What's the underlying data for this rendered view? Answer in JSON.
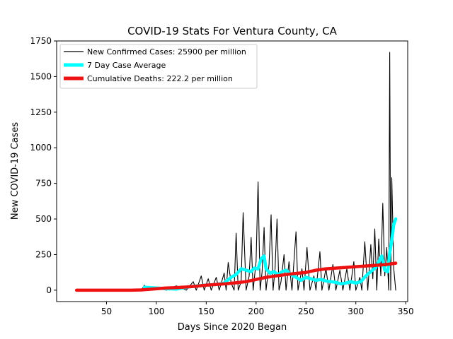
{
  "chart_data": {
    "type": "line",
    "title": "COVID-19 Stats For Ventura County, CA",
    "xlabel": "Days Since 2020 Began",
    "ylabel": "New COVID-19 Cases",
    "xlim": [
      0,
      352
    ],
    "ylim": [
      -80,
      1750
    ],
    "xticks": [
      50,
      100,
      150,
      200,
      250,
      300,
      350
    ],
    "yticks": [
      0,
      250,
      500,
      750,
      1000,
      1250,
      1500,
      1750
    ],
    "grid": false,
    "legend_position": "top-left",
    "series": [
      {
        "name": "New Confirmed Cases: 25900 per million",
        "color": "#000000",
        "points": [
          [
            85,
            0
          ],
          [
            88,
            35
          ],
          [
            90,
            0
          ],
          [
            100,
            20
          ],
          [
            110,
            0
          ],
          [
            120,
            30
          ],
          [
            130,
            0
          ],
          [
            137,
            60
          ],
          [
            140,
            0
          ],
          [
            145,
            100
          ],
          [
            148,
            0
          ],
          [
            152,
            80
          ],
          [
            155,
            0
          ],
          [
            160,
            90
          ],
          [
            163,
            0
          ],
          [
            168,
            120
          ],
          [
            170,
            0
          ],
          [
            172,
            195
          ],
          [
            175,
            50
          ],
          [
            178,
            0
          ],
          [
            180,
            400
          ],
          [
            182,
            0
          ],
          [
            185,
            60
          ],
          [
            187,
            545
          ],
          [
            190,
            0
          ],
          [
            193,
            100
          ],
          [
            195,
            370
          ],
          [
            197,
            0
          ],
          [
            200,
            200
          ],
          [
            202,
            760
          ],
          [
            204,
            0
          ],
          [
            206,
            130
          ],
          [
            208,
            440
          ],
          [
            210,
            0
          ],
          [
            213,
            180
          ],
          [
            215,
            530
          ],
          [
            217,
            0
          ],
          [
            219,
            150
          ],
          [
            221,
            500
          ],
          [
            223,
            0
          ],
          [
            225,
            60
          ],
          [
            228,
            250
          ],
          [
            230,
            0
          ],
          [
            233,
            200
          ],
          [
            236,
            0
          ],
          [
            240,
            410
          ],
          [
            242,
            0
          ],
          [
            246,
            150
          ],
          [
            248,
            0
          ],
          [
            251,
            300
          ],
          [
            254,
            0
          ],
          [
            258,
            100
          ],
          [
            260,
            0
          ],
          [
            264,
            270
          ],
          [
            266,
            0
          ],
          [
            270,
            150
          ],
          [
            273,
            0
          ],
          [
            277,
            180
          ],
          [
            280,
            0
          ],
          [
            284,
            140
          ],
          [
            287,
            0
          ],
          [
            291,
            150
          ],
          [
            294,
            0
          ],
          [
            298,
            200
          ],
          [
            300,
            0
          ],
          [
            304,
            90
          ],
          [
            306,
            0
          ],
          [
            309,
            340
          ],
          [
            312,
            0
          ],
          [
            315,
            320
          ],
          [
            317,
            80
          ],
          [
            319,
            430
          ],
          [
            321,
            0
          ],
          [
            323,
            360
          ],
          [
            325,
            100
          ],
          [
            327,
            610
          ],
          [
            329,
            100
          ],
          [
            331,
            300
          ],
          [
            333,
            0
          ],
          [
            334,
            1670
          ],
          [
            335,
            0
          ],
          [
            336,
            790
          ],
          [
            338,
            150
          ],
          [
            340,
            0
          ]
        ]
      },
      {
        "name": "7 Day Case Average",
        "color": "#00ffff",
        "points": [
          [
            88,
            20
          ],
          [
            100,
            15
          ],
          [
            110,
            10
          ],
          [
            120,
            8
          ],
          [
            130,
            20
          ],
          [
            140,
            30
          ],
          [
            150,
            35
          ],
          [
            160,
            40
          ],
          [
            168,
            50
          ],
          [
            175,
            90
          ],
          [
            180,
            110
          ],
          [
            185,
            150
          ],
          [
            190,
            140
          ],
          [
            195,
            130
          ],
          [
            198,
            155
          ],
          [
            202,
            150
          ],
          [
            205,
            220
          ],
          [
            208,
            240
          ],
          [
            210,
            150
          ],
          [
            214,
            120
          ],
          [
            218,
            130
          ],
          [
            222,
            110
          ],
          [
            226,
            130
          ],
          [
            230,
            140
          ],
          [
            235,
            110
          ],
          [
            240,
            90
          ],
          [
            245,
            70
          ],
          [
            250,
            90
          ],
          [
            255,
            80
          ],
          [
            260,
            70
          ],
          [
            265,
            75
          ],
          [
            270,
            65
          ],
          [
            275,
            60
          ],
          [
            280,
            55
          ],
          [
            285,
            45
          ],
          [
            290,
            50
          ],
          [
            295,
            60
          ],
          [
            300,
            50
          ],
          [
            305,
            60
          ],
          [
            310,
            100
          ],
          [
            315,
            130
          ],
          [
            320,
            160
          ],
          [
            323,
            200
          ],
          [
            326,
            240
          ],
          [
            329,
            140
          ],
          [
            332,
            130
          ],
          [
            334,
            260
          ],
          [
            336,
            350
          ],
          [
            338,
            460
          ],
          [
            340,
            500
          ]
        ]
      },
      {
        "name": "Cumulative Deaths: 222.2 per million",
        "color": "#ee1111",
        "points": [
          [
            20,
            0
          ],
          [
            40,
            0
          ],
          [
            60,
            0
          ],
          [
            75,
            0
          ],
          [
            85,
            2
          ],
          [
            100,
            10
          ],
          [
            110,
            15
          ],
          [
            120,
            18
          ],
          [
            130,
            22
          ],
          [
            140,
            28
          ],
          [
            150,
            35
          ],
          [
            160,
            40
          ],
          [
            170,
            45
          ],
          [
            180,
            52
          ],
          [
            190,
            60
          ],
          [
            200,
            75
          ],
          [
            210,
            90
          ],
          [
            220,
            100
          ],
          [
            230,
            110
          ],
          [
            240,
            118
          ],
          [
            250,
            125
          ],
          [
            260,
            140
          ],
          [
            270,
            150
          ],
          [
            280,
            155
          ],
          [
            290,
            160
          ],
          [
            300,
            165
          ],
          [
            310,
            170
          ],
          [
            320,
            175
          ],
          [
            330,
            180
          ],
          [
            340,
            190
          ]
        ]
      }
    ]
  }
}
